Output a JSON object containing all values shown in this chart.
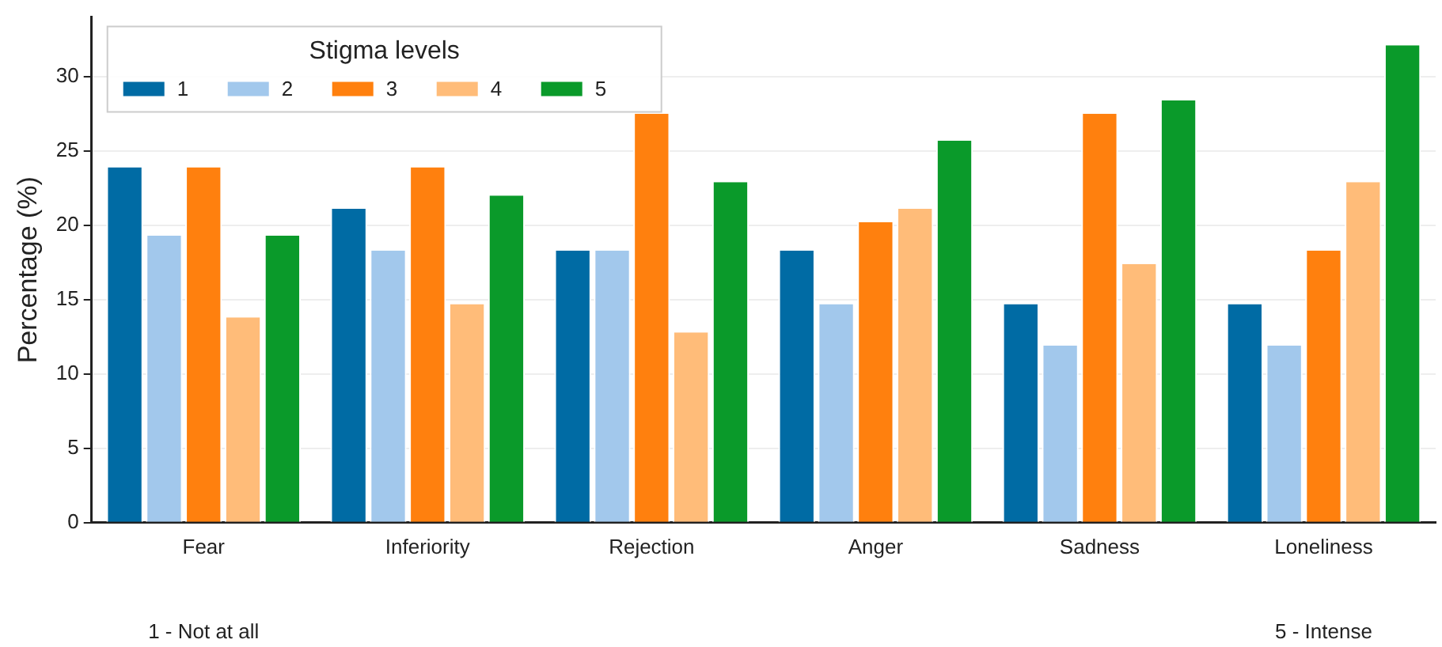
{
  "chart_data": {
    "type": "bar",
    "ylabel": "Percentage (%)",
    "legend_title": "Stigma levels",
    "legend": "top left",
    "grid": "y",
    "categories": [
      "Fear",
      "Inferiority",
      "Rejection",
      "Anger",
      "Sadness",
      "Loneliness"
    ],
    "ylim": [
      0,
      34
    ],
    "yticks": [
      0,
      5,
      10,
      15,
      20,
      25,
      30
    ],
    "series": [
      {
        "name": "1",
        "color": "#006ba4",
        "values": [
          23.9,
          21.1,
          18.3,
          18.3,
          14.7,
          14.7
        ]
      },
      {
        "name": "2",
        "color": "#a2c8ec",
        "values": [
          19.3,
          18.3,
          18.3,
          14.7,
          11.9,
          11.9
        ]
      },
      {
        "name": "3",
        "color": "#ff800e",
        "values": [
          23.9,
          23.9,
          27.5,
          20.2,
          27.5,
          18.3
        ]
      },
      {
        "name": "4",
        "color": "#ffbc79",
        "values": [
          13.8,
          14.7,
          12.8,
          21.1,
          17.4,
          22.9
        ]
      },
      {
        "name": "5",
        "color": "#0a9a2a",
        "values": [
          19.3,
          22.0,
          22.9,
          25.7,
          28.4,
          32.1
        ]
      }
    ],
    "annotations": [
      "1 - Not at all",
      "5 - Intense"
    ]
  }
}
